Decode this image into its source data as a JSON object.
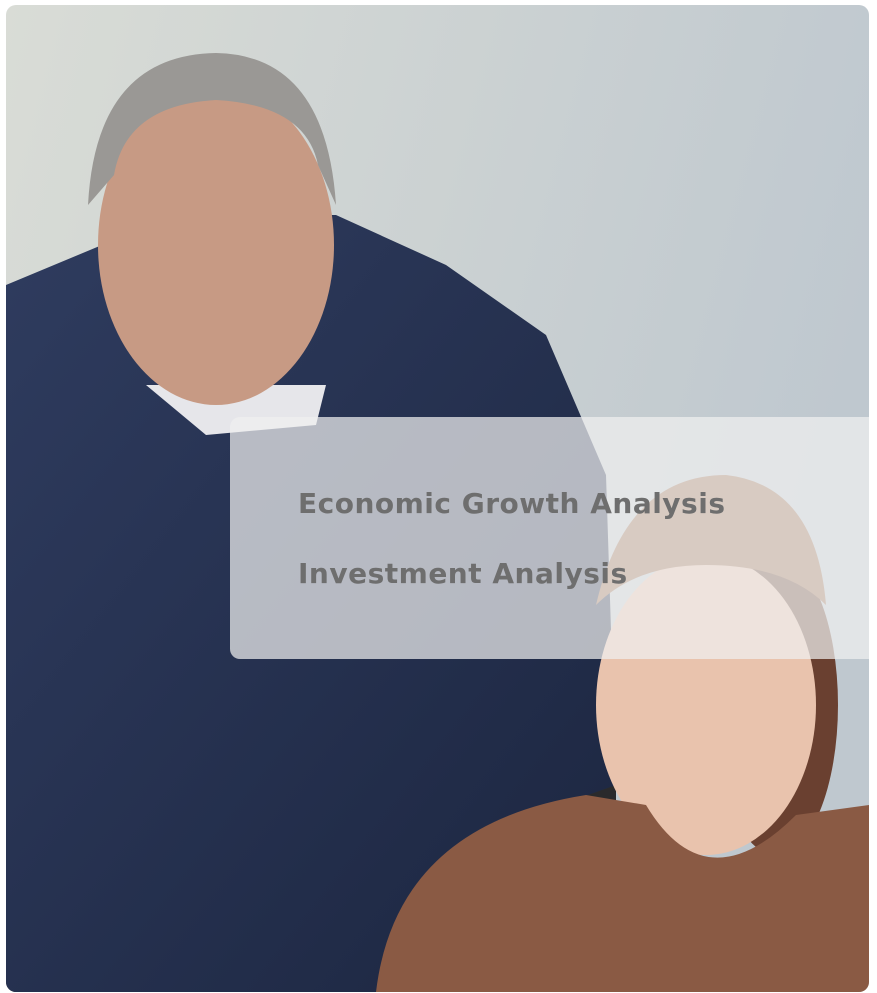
{
  "overlay": {
    "items": [
      "Economic Growth Analysis",
      "Investment Analysis"
    ]
  }
}
